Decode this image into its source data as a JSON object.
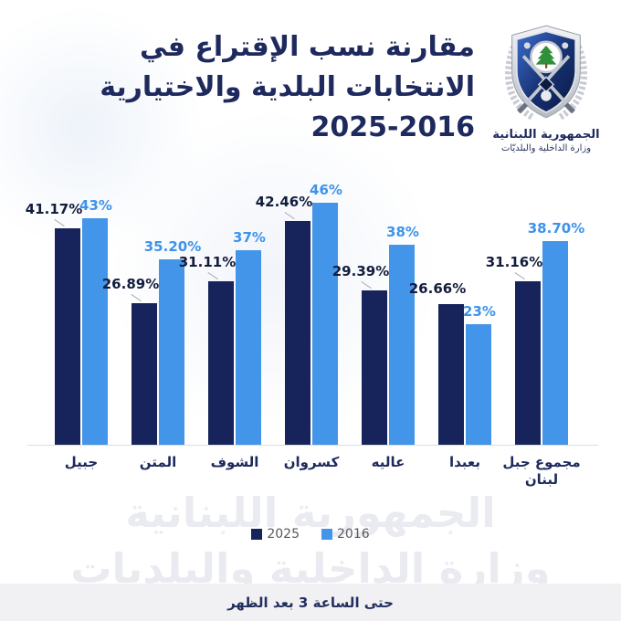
{
  "title": {
    "line1": "مقارنة نسب الإقتراع في",
    "line2": "الانتخابات البلدية والاختيارية",
    "line3": "2025-2016"
  },
  "logo": {
    "org_line1": "الجمهورية اللبنانية",
    "org_line2": "وزارة الداخلية والبلديّات"
  },
  "chart_data": {
    "type": "bar",
    "title": "مقارنة نسب الإقتراع في الانتخابات البلدية والاختيارية 2025-2016",
    "categories": [
      "جبيل",
      "المتن",
      "الشوف",
      "كسروان",
      "عاليه",
      "بعبدا",
      "مجموع جبل لبنان"
    ],
    "series": [
      {
        "name": "2025",
        "color": "#16245b",
        "values": [
          41.17,
          26.89,
          31.11,
          42.46,
          29.39,
          26.66,
          31.16
        ],
        "labels": [
          "41.17%",
          "26.89%",
          "31.11%",
          "42.46%",
          "29.39%",
          "26.66%",
          "31.16%"
        ]
      },
      {
        "name": "2016",
        "color": "#4295e8",
        "values": [
          43,
          35.2,
          37,
          46,
          38,
          23,
          38.7
        ],
        "labels": [
          "43%",
          "35.20%",
          "37%",
          "46%",
          "38%",
          "23%",
          "38.70%"
        ]
      }
    ],
    "ylim": [
      0,
      50
    ],
    "grid": false,
    "legend_position": "bottom-center",
    "value_label_colors": {
      "2025": "#121d3c",
      "2016": "#3e93e9"
    }
  },
  "watermark": {
    "line1": "الجمهورية اللبنانية",
    "line2": "وزارة الداخلية والبلديات"
  },
  "footer": {
    "note": "حتى الساعة 3 بعد الظهر"
  },
  "colors": {
    "title": "#1e2a5e",
    "bar_2025": "#16245b",
    "bar_2016": "#4295e8",
    "footer_band": "#f1f1f4",
    "axis_line": "#dddde2"
  }
}
